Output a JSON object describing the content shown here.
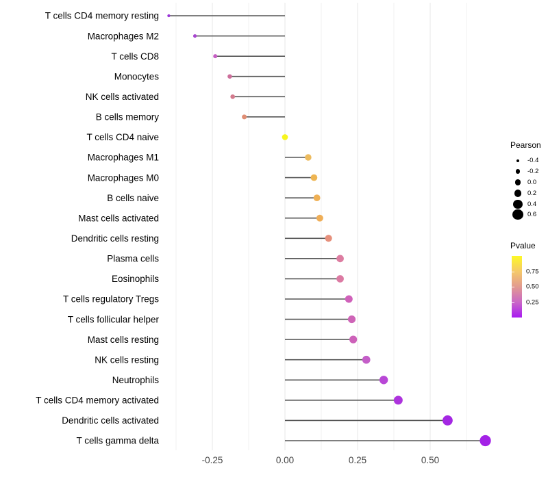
{
  "chart_data": {
    "type": "lollipop",
    "orientation": "horizontal",
    "title": "",
    "xlabel": "",
    "ylabel": "",
    "grid": true,
    "x_axis": {
      "range": [
        -0.455,
        0.745
      ],
      "ticks": [
        {
          "value": -0.25,
          "label": "-0.25"
        },
        {
          "value": 0.0,
          "label": "0.00"
        },
        {
          "value": 0.25,
          "label": "0.25"
        },
        {
          "value": 0.5,
          "label": "0.50"
        }
      ],
      "minor_ticks": [
        -0.375,
        -0.125,
        0.125,
        0.375,
        0.625
      ]
    },
    "rows": [
      {
        "label": "T cells CD4 memory resting",
        "pearson": -0.4,
        "point_color": "#9a35d6"
      },
      {
        "label": "Macrophages M2",
        "pearson": -0.31,
        "point_color": "#a846cf"
      },
      {
        "label": "T cells CD8",
        "pearson": -0.24,
        "point_color": "#c65fc4"
      },
      {
        "label": "Monocytes",
        "pearson": -0.19,
        "point_color": "#cd6f9b"
      },
      {
        "label": "NK cells activated",
        "pearson": -0.18,
        "point_color": "#d37a8d"
      },
      {
        "label": "B cells memory",
        "pearson": -0.14,
        "point_color": "#e08e74"
      },
      {
        "label": "T cells CD4 naive",
        "pearson": 0.0,
        "point_color": "#f7f51e"
      },
      {
        "label": "Macrophages M1",
        "pearson": 0.08,
        "point_color": "#edbb5e"
      },
      {
        "label": "Macrophages M0",
        "pearson": 0.1,
        "point_color": "#eeb553"
      },
      {
        "label": "B cells naive",
        "pearson": 0.11,
        "point_color": "#efb055"
      },
      {
        "label": "Mast cells activated",
        "pearson": 0.12,
        "point_color": "#efae57"
      },
      {
        "label": "Dendritic cells resting",
        "pearson": 0.15,
        "point_color": "#e6907c"
      },
      {
        "label": "Plasma cells",
        "pearson": 0.19,
        "point_color": "#dd7da1"
      },
      {
        "label": "Eosinophils",
        "pearson": 0.19,
        "point_color": "#dc7aa3"
      },
      {
        "label": "T cells regulatory  Tregs",
        "pearson": 0.22,
        "point_color": "#d061ba"
      },
      {
        "label": "T cells follicular helper",
        "pearson": 0.23,
        "point_color": "#ce64b7"
      },
      {
        "label": "Mast cells resting",
        "pearson": 0.235,
        "point_color": "#cd61b9"
      },
      {
        "label": "NK cells resting",
        "pearson": 0.28,
        "point_color": "#c45ec8"
      },
      {
        "label": "Neutrophils",
        "pearson": 0.34,
        "point_color": "#b847d6"
      },
      {
        "label": "T cells CD4 memory activated",
        "pearson": 0.39,
        "point_color": "#ad33dd"
      },
      {
        "label": "Dendritic cells activated",
        "pearson": 0.56,
        "point_color": "#a427e3"
      },
      {
        "label": "T cells gamma delta",
        "pearson": 0.69,
        "point_color": "#a322e6"
      }
    ],
    "size_legend": {
      "title": "Pearson",
      "entries": [
        {
          "value": -0.4,
          "label": "-0.4"
        },
        {
          "value": -0.2,
          "label": "-0.2"
        },
        {
          "value": 0.0,
          "label": "0.0"
        },
        {
          "value": 0.2,
          "label": "0.2"
        },
        {
          "value": 0.4,
          "label": "0.4"
        },
        {
          "value": 0.6,
          "label": "0.6"
        }
      ]
    },
    "color_legend": {
      "title": "Pvalue",
      "range": [
        0,
        1
      ],
      "ticks": [
        {
          "value": 0.75,
          "label": "0.75"
        },
        {
          "value": 0.5,
          "label": "0.50"
        },
        {
          "value": 0.25,
          "label": "0.25"
        }
      ],
      "gradient_top_to_bottom": [
        "#fdf926",
        "#f5c969",
        "#e29a90",
        "#ca68c6",
        "#a81af2"
      ]
    }
  },
  "colors": {
    "background": "#ffffff",
    "stem": "#555555",
    "grid_major": "#e7e7e7",
    "grid_minor": "#f2f2f2",
    "axis_text": "#454545",
    "category_text": "#000000",
    "legend_dot": "#000000"
  }
}
